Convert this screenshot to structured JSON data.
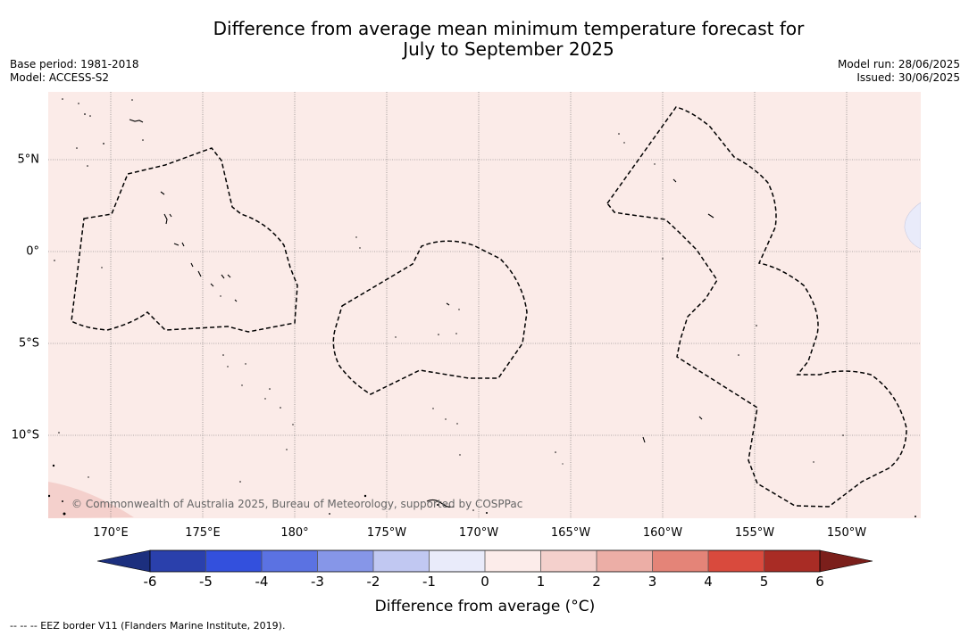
{
  "title": {
    "line1": "Difference from average mean minimum temperature forecast for",
    "line2": "July to September 2025"
  },
  "meta_left": {
    "base_period": "Base period: 1981-2018",
    "model": "Model: ACCESS-S2"
  },
  "meta_right": {
    "model_run": "Model run: 28/06/2025",
    "issued": "Issued: 30/06/2025"
  },
  "map": {
    "background_color": "#fbebe8",
    "latitude_labels": [
      "5°N",
      "0°",
      "5°S",
      "10°S"
    ],
    "longitude_labels": [
      "170°E",
      "175°E",
      "180°",
      "175°W",
      "170°W",
      "165°W",
      "160°W",
      "155°W",
      "150°W"
    ],
    "copyright": "© Commonwealth of Australia 2025, Bureau of Meteorology, supported by COSPPac"
  },
  "colorbar": {
    "title": "Difference from average (°C)",
    "ticks": [
      "-6",
      "-5",
      "-4",
      "-3",
      "-2",
      "-1",
      "0",
      "1",
      "2",
      "3",
      "4",
      "5",
      "6"
    ],
    "colors": {
      "below_min": "#1c2f7e",
      "b1": "#2a40ac",
      "b2": "#3350dd",
      "b3": "#5b72e2",
      "b4": "#8696e8",
      "b5": "#c1c8f2",
      "b6": "#e9ebfa",
      "r1": "#fcecea",
      "r2": "#f4d0cc",
      "r3": "#ecaea6",
      "r4": "#e48478",
      "r5": "#d94a3d",
      "r6": "#a92c25",
      "above_max": "#7b1f1b"
    }
  },
  "legend_note": "-- -- -- EEZ border V11 (Flanders Marine Institute, 2019)."
}
